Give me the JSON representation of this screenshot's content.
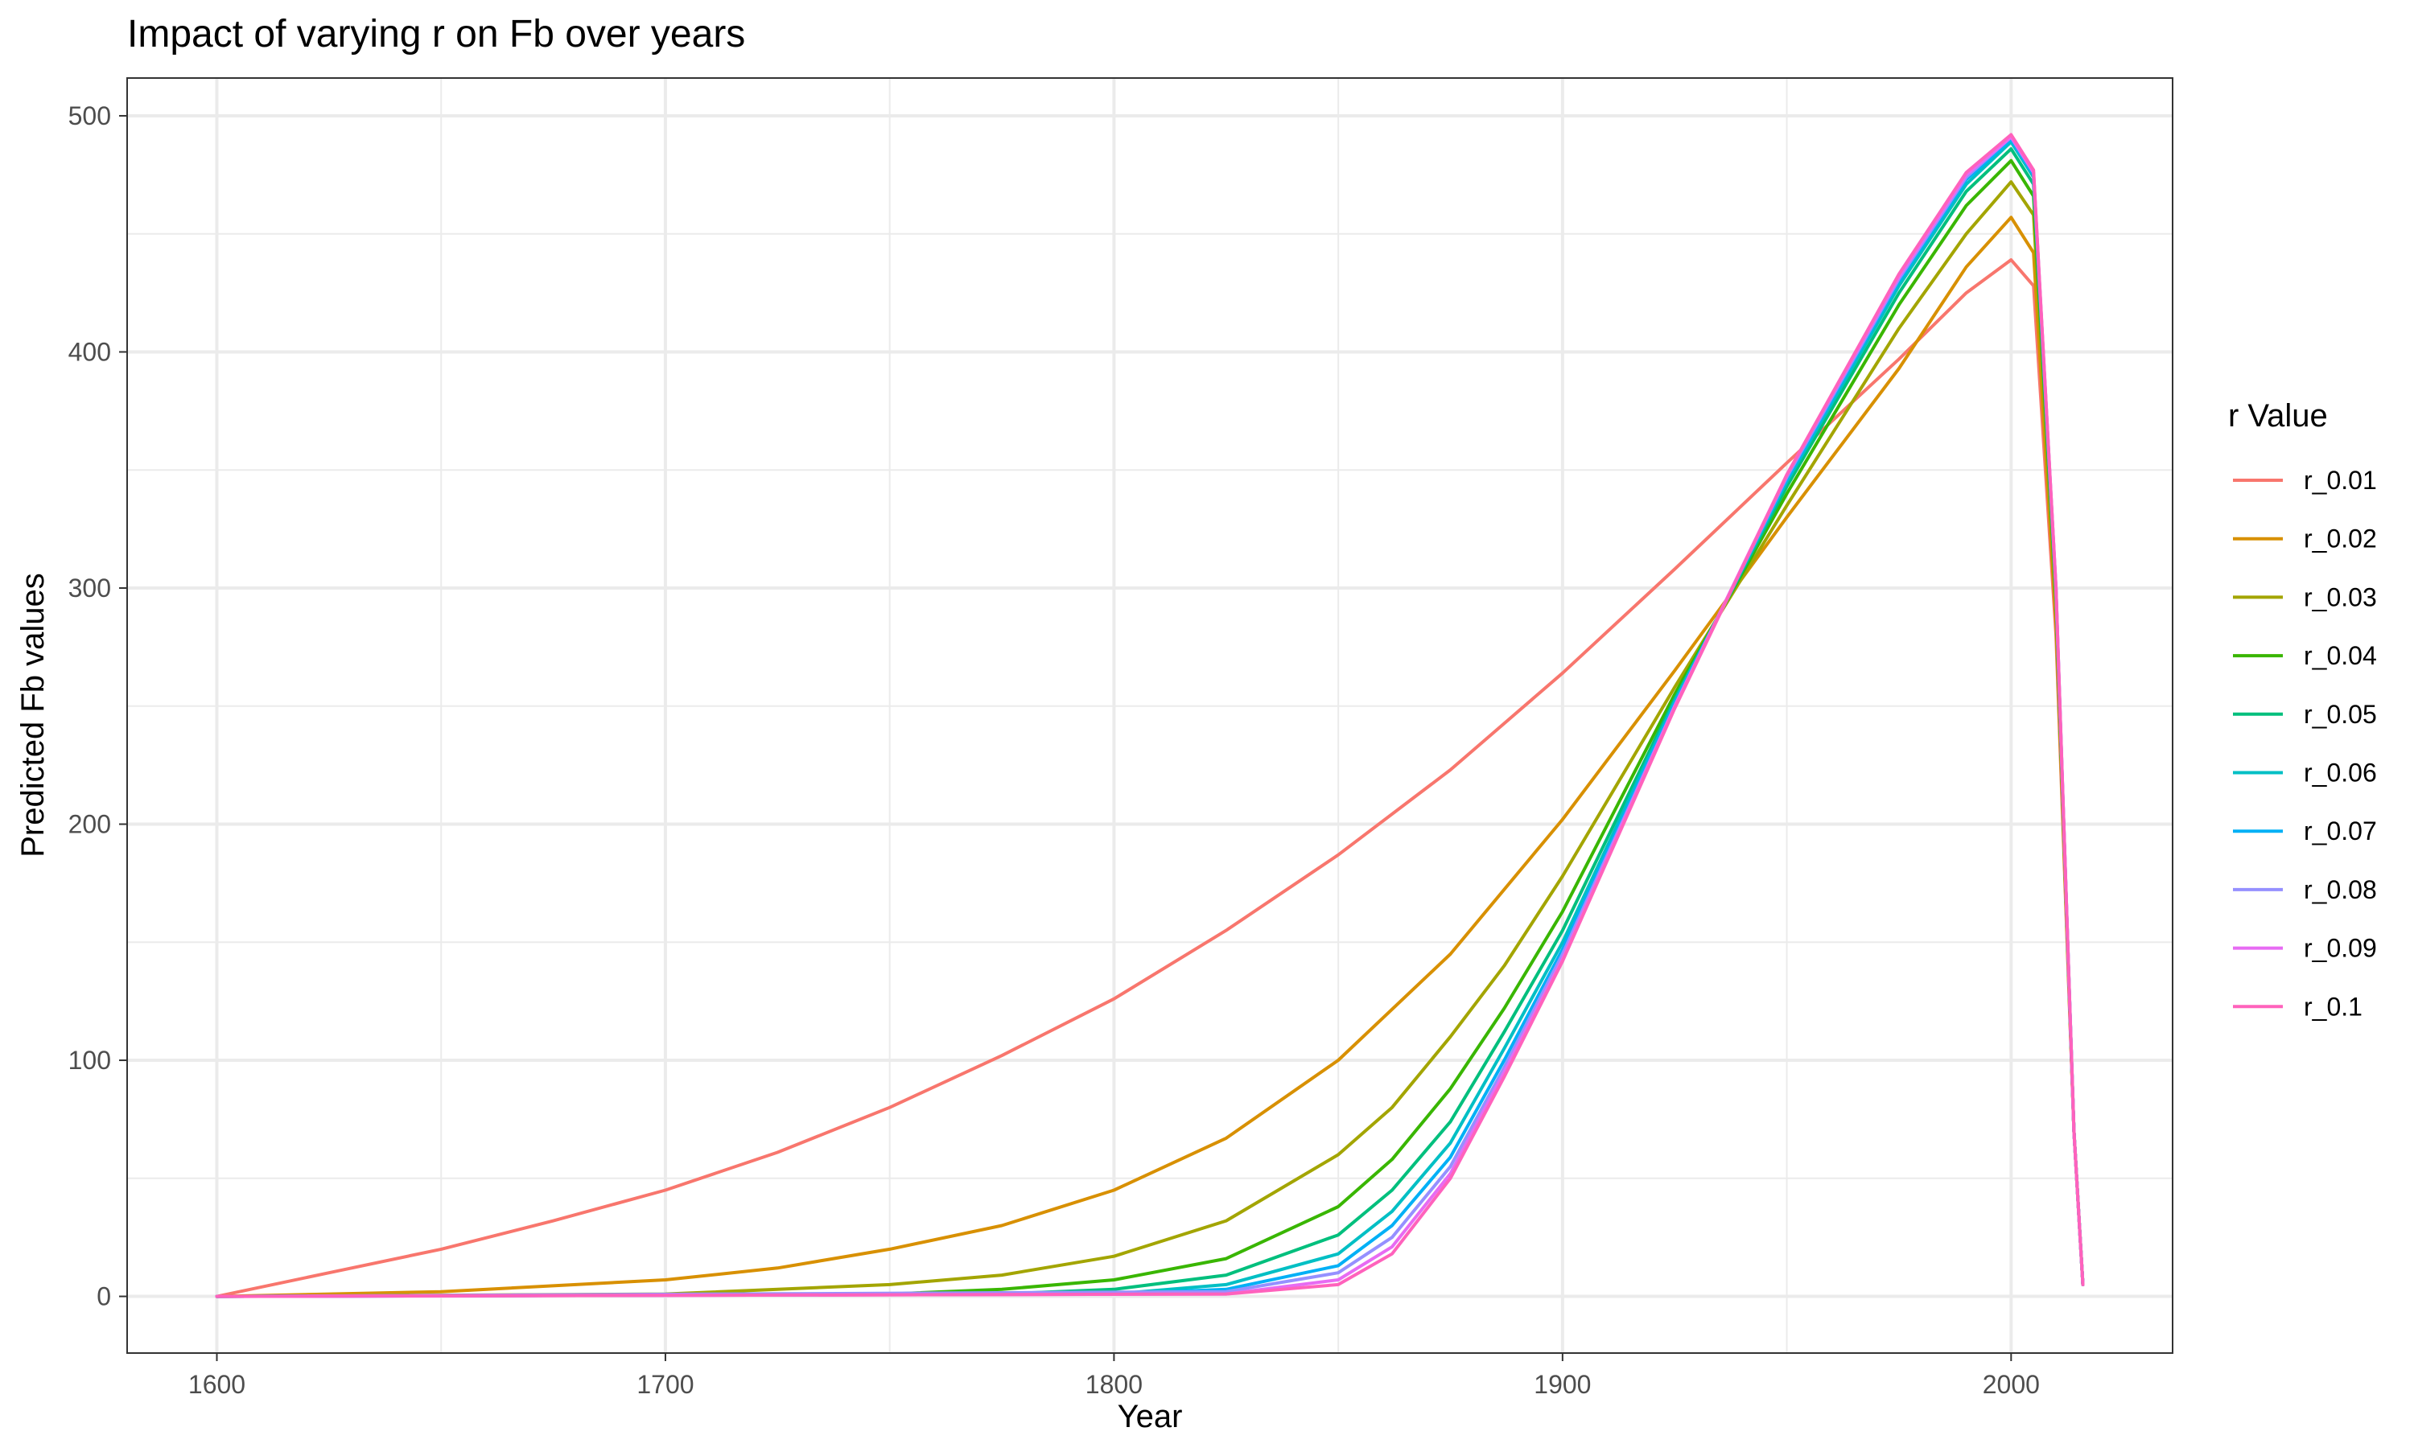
{
  "chart_data": {
    "type": "line",
    "title": "Impact of varying r on Fb over years",
    "xlabel": "Year",
    "ylabel": "Predicted Fb values",
    "xlim": [
      1580,
      2036
    ],
    "ylim": [
      -24,
      516
    ],
    "x_ticks": [
      1600,
      1700,
      1800,
      1900,
      2000
    ],
    "y_ticks": [
      0,
      100,
      200,
      300,
      400,
      500
    ],
    "grid": true,
    "legend": {
      "title": "r Value",
      "placement": "right"
    },
    "series": [
      {
        "name": "r_0.01",
        "color": "#F8766D",
        "points": [
          [
            1600,
            0
          ],
          [
            1625,
            10
          ],
          [
            1650,
            20
          ],
          [
            1675,
            32
          ],
          [
            1700,
            45
          ],
          [
            1725,
            61
          ],
          [
            1750,
            80
          ],
          [
            1775,
            102
          ],
          [
            1800,
            126
          ],
          [
            1825,
            155
          ],
          [
            1850,
            187
          ],
          [
            1875,
            223
          ],
          [
            1900,
            264
          ],
          [
            1925,
            308
          ],
          [
            1950,
            353
          ],
          [
            1975,
            397
          ],
          [
            1990,
            425
          ],
          [
            2000,
            439
          ],
          [
            2005,
            428
          ],
          [
            2010,
            280
          ],
          [
            2014,
            70
          ],
          [
            2016,
            5
          ]
        ]
      },
      {
        "name": "r_0.02",
        "color": "#D89000",
        "points": [
          [
            1600,
            0
          ],
          [
            1650,
            2
          ],
          [
            1700,
            7
          ],
          [
            1725,
            12
          ],
          [
            1750,
            20
          ],
          [
            1775,
            30
          ],
          [
            1800,
            45
          ],
          [
            1825,
            67
          ],
          [
            1850,
            100
          ],
          [
            1875,
            145
          ],
          [
            1900,
            202
          ],
          [
            1925,
            265
          ],
          [
            1950,
            330
          ],
          [
            1975,
            393
          ],
          [
            1990,
            436
          ],
          [
            2000,
            457
          ],
          [
            2005,
            442
          ],
          [
            2010,
            285
          ],
          [
            2014,
            70
          ],
          [
            2016,
            5
          ]
        ]
      },
      {
        "name": "r_0.03",
        "color": "#A3A500",
        "points": [
          [
            1600,
            0
          ],
          [
            1700,
            1
          ],
          [
            1750,
            5
          ],
          [
            1775,
            9
          ],
          [
            1800,
            17
          ],
          [
            1825,
            32
          ],
          [
            1850,
            60
          ],
          [
            1862,
            80
          ],
          [
            1875,
            110
          ],
          [
            1887,
            140
          ],
          [
            1900,
            178
          ],
          [
            1925,
            258
          ],
          [
            1950,
            335
          ],
          [
            1975,
            410
          ],
          [
            1990,
            450
          ],
          [
            2000,
            472
          ],
          [
            2005,
            458
          ],
          [
            2010,
            290
          ],
          [
            2014,
            70
          ],
          [
            2016,
            5
          ]
        ]
      },
      {
        "name": "r_0.04",
        "color": "#39B600",
        "points": [
          [
            1600,
            0
          ],
          [
            1750,
            1
          ],
          [
            1775,
            3
          ],
          [
            1800,
            7
          ],
          [
            1825,
            16
          ],
          [
            1850,
            38
          ],
          [
            1862,
            58
          ],
          [
            1875,
            88
          ],
          [
            1887,
            122
          ],
          [
            1900,
            163
          ],
          [
            1925,
            255
          ],
          [
            1950,
            340
          ],
          [
            1975,
            420
          ],
          [
            1990,
            462
          ],
          [
            2000,
            481
          ],
          [
            2005,
            466
          ],
          [
            2010,
            295
          ],
          [
            2014,
            70
          ],
          [
            2016,
            5
          ]
        ]
      },
      {
        "name": "r_0.05",
        "color": "#00BF7D",
        "points": [
          [
            1600,
            0
          ],
          [
            1775,
            1
          ],
          [
            1800,
            3
          ],
          [
            1825,
            9
          ],
          [
            1850,
            26
          ],
          [
            1862,
            45
          ],
          [
            1875,
            74
          ],
          [
            1887,
            112
          ],
          [
            1900,
            155
          ],
          [
            1925,
            253
          ],
          [
            1950,
            343
          ],
          [
            1975,
            425
          ],
          [
            1990,
            468
          ],
          [
            2000,
            486
          ],
          [
            2005,
            471
          ],
          [
            2010,
            297
          ],
          [
            2014,
            70
          ],
          [
            2016,
            5
          ]
        ]
      },
      {
        "name": "r_0.06",
        "color": "#00BFC4",
        "points": [
          [
            1600,
            0
          ],
          [
            1800,
            1
          ],
          [
            1825,
            5
          ],
          [
            1850,
            18
          ],
          [
            1862,
            36
          ],
          [
            1875,
            65
          ],
          [
            1887,
            105
          ],
          [
            1900,
            150
          ],
          [
            1925,
            252
          ],
          [
            1950,
            345
          ],
          [
            1975,
            428
          ],
          [
            1990,
            471
          ],
          [
            2000,
            489
          ],
          [
            2005,
            474
          ],
          [
            2010,
            298
          ],
          [
            2014,
            70
          ],
          [
            2016,
            5
          ]
        ]
      },
      {
        "name": "r_0.07",
        "color": "#00B0F6",
        "points": [
          [
            1600,
            0
          ],
          [
            1800,
            1
          ],
          [
            1825,
            3
          ],
          [
            1850,
            13
          ],
          [
            1862,
            30
          ],
          [
            1875,
            59
          ],
          [
            1887,
            100
          ],
          [
            1900,
            147
          ],
          [
            1925,
            251
          ],
          [
            1950,
            346
          ],
          [
            1975,
            430
          ],
          [
            1990,
            473
          ],
          [
            2000,
            490
          ],
          [
            2005,
            475
          ],
          [
            2010,
            299
          ],
          [
            2014,
            70
          ],
          [
            2016,
            5
          ]
        ]
      },
      {
        "name": "r_0.08",
        "color": "#9590FF",
        "points": [
          [
            1600,
            0
          ],
          [
            1825,
            2
          ],
          [
            1850,
            10
          ],
          [
            1862,
            25
          ],
          [
            1875,
            55
          ],
          [
            1887,
            97
          ],
          [
            1900,
            145
          ],
          [
            1925,
            250
          ],
          [
            1950,
            347
          ],
          [
            1975,
            431
          ],
          [
            1990,
            474
          ],
          [
            2000,
            491
          ],
          [
            2005,
            476
          ],
          [
            2010,
            300
          ],
          [
            2014,
            70
          ],
          [
            2016,
            5
          ]
        ]
      },
      {
        "name": "r_0.09",
        "color": "#E76BF3",
        "points": [
          [
            1600,
            0
          ],
          [
            1825,
            1
          ],
          [
            1850,
            7
          ],
          [
            1862,
            21
          ],
          [
            1875,
            52
          ],
          [
            1887,
            95
          ],
          [
            1900,
            143
          ],
          [
            1925,
            250
          ],
          [
            1950,
            348
          ],
          [
            1975,
            432
          ],
          [
            1990,
            475
          ],
          [
            2000,
            491
          ],
          [
            2005,
            476
          ],
          [
            2010,
            300
          ],
          [
            2014,
            70
          ],
          [
            2016,
            5
          ]
        ]
      },
      {
        "name": "r_0.1",
        "color": "#FF62BC",
        "points": [
          [
            1600,
            0
          ],
          [
            1825,
            1
          ],
          [
            1850,
            5
          ],
          [
            1862,
            18
          ],
          [
            1875,
            50
          ],
          [
            1887,
            93
          ],
          [
            1900,
            142
          ],
          [
            1925,
            249
          ],
          [
            1950,
            348
          ],
          [
            1975,
            433
          ],
          [
            1990,
            476
          ],
          [
            2000,
            492
          ],
          [
            2005,
            477
          ],
          [
            2010,
            300
          ],
          [
            2014,
            70
          ],
          [
            2016,
            5
          ]
        ]
      }
    ]
  }
}
